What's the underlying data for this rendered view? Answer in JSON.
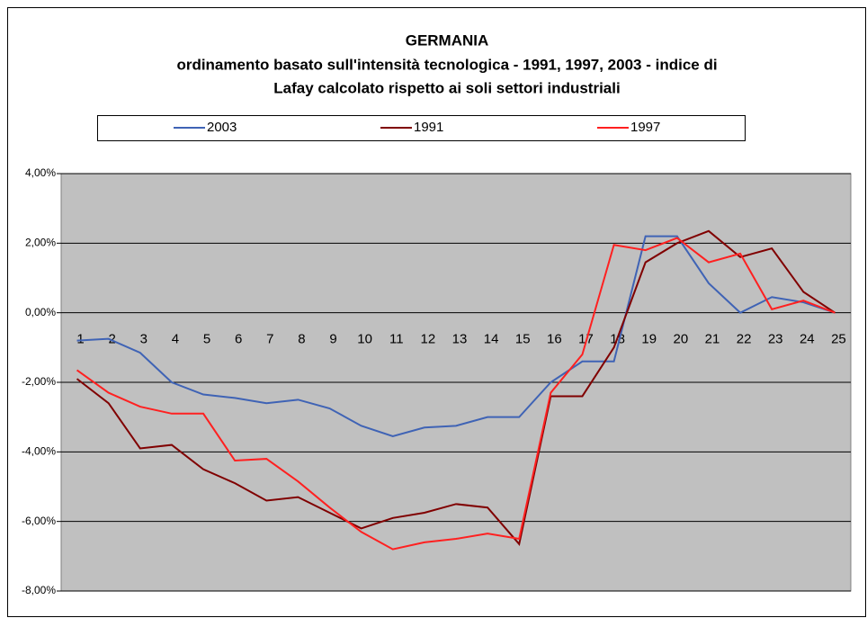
{
  "chart_data": {
    "type": "line",
    "title": "GERMANIA",
    "subtitle": [
      "ordinamento basato sull'intensità tecnologica - 1991, 1997, 2003 - indice di",
      "Lafay calcolato rispetto ai soli settori industriali"
    ],
    "categories": [
      "1",
      "2",
      "3",
      "4",
      "5",
      "6",
      "7",
      "8",
      "9",
      "10",
      "11",
      "12",
      "13",
      "14",
      "15",
      "16",
      "17",
      "18",
      "19",
      "20",
      "21",
      "22",
      "23",
      "24",
      "25"
    ],
    "series": [
      {
        "name": "2003",
        "color": "#3f63b5",
        "values": [
          -0.8,
          -0.75,
          -1.15,
          -2.0,
          -2.35,
          -2.45,
          -2.6,
          -2.5,
          -2.75,
          -3.25,
          -3.55,
          -3.3,
          -3.25,
          -3.0,
          -3.0,
          -2.0,
          -1.4,
          -1.4,
          2.2,
          2.2,
          0.85,
          0.0,
          0.45,
          0.3,
          0.0
        ]
      },
      {
        "name": "1991",
        "color": "#800000",
        "values": [
          -1.9,
          -2.6,
          -3.9,
          -3.8,
          -4.5,
          -4.9,
          -5.4,
          -5.3,
          -5.75,
          -6.2,
          -5.9,
          -5.75,
          -5.5,
          -5.6,
          -6.65,
          -2.4,
          -2.4,
          -1.0,
          1.45,
          2.0,
          2.35,
          1.6,
          1.85,
          0.6,
          0.0
        ]
      },
      {
        "name": "1997",
        "color": "#ff2020",
        "values": [
          -1.65,
          -2.3,
          -2.7,
          -2.9,
          -2.9,
          -4.25,
          -4.2,
          -4.85,
          -5.6,
          -6.3,
          -6.8,
          -6.6,
          -6.5,
          -6.35,
          -6.5,
          -2.3,
          -1.2,
          1.95,
          1.8,
          2.15,
          1.45,
          1.7,
          0.1,
          0.35,
          0.0
        ]
      }
    ],
    "ylim": [
      -8,
      4
    ],
    "yticks": [
      {
        "value": -8,
        "label": "-8,00%"
      },
      {
        "value": -6,
        "label": "-6,00%"
      },
      {
        "value": -4,
        "label": "-4,00%"
      },
      {
        "value": -2,
        "label": "-2,00%"
      },
      {
        "value": 0,
        "label": "0,00%"
      },
      {
        "value": 2,
        "label": "2,00%"
      },
      {
        "value": 4,
        "label": "4,00%"
      }
    ],
    "grid": true,
    "legend": "top"
  }
}
